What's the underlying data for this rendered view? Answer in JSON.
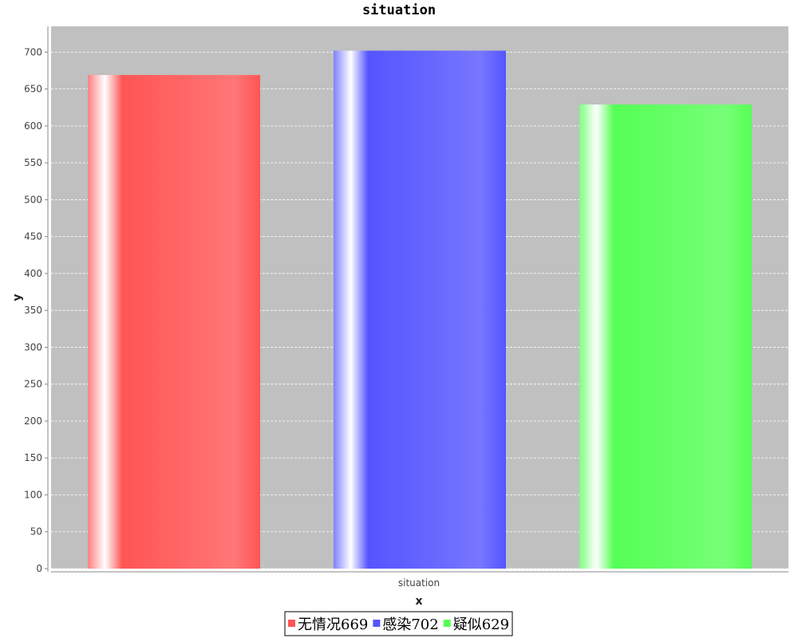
{
  "chart_data": {
    "type": "bar",
    "title": "situation",
    "xlabel": "x",
    "ylabel": "y",
    "categories": [
      "situation"
    ],
    "ylim": [
      0,
      735
    ],
    "yticks": [
      0,
      50,
      100,
      150,
      200,
      250,
      300,
      350,
      400,
      450,
      500,
      550,
      600,
      650,
      700
    ],
    "grid": true,
    "legend_position": "bottom",
    "series": [
      {
        "name": "无情况669",
        "values": [
          669
        ],
        "color": "#ff5555"
      },
      {
        "name": "感染702",
        "values": [
          702
        ],
        "color": "#5555ff"
      },
      {
        "name": "疑似629",
        "values": [
          629
        ],
        "color": "#55ff55"
      }
    ]
  }
}
